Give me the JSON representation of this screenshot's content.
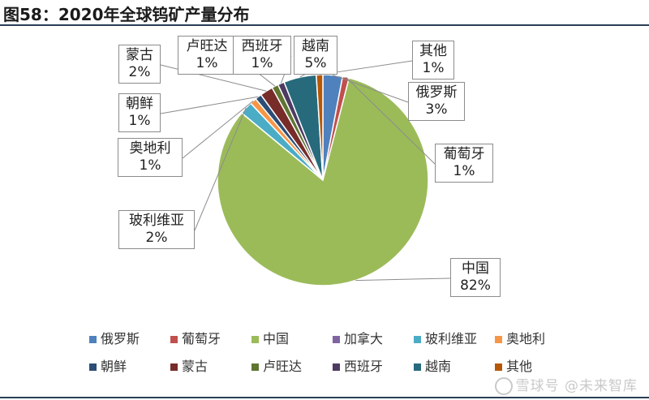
{
  "title": "图58：2020年全球钨矿产量分布",
  "watermark": "雪球号 @未来智库",
  "chart_data": {
    "type": "pie",
    "start_angle_deg": 90,
    "slices": [
      {
        "name": "俄罗斯",
        "value": 3,
        "label": "3%",
        "color": "#4f81bd"
      },
      {
        "name": "葡萄牙",
        "value": 1,
        "label": "1%",
        "color": "#c0504d"
      },
      {
        "name": "中国",
        "value": 82,
        "label": "82%",
        "color": "#9bbb59"
      },
      {
        "name": "加拿大",
        "value": 0,
        "label": "",
        "color": "#8064a2"
      },
      {
        "name": "玻利维亚",
        "value": 2,
        "label": "2%",
        "color": "#4bacc6"
      },
      {
        "name": "奥地利",
        "value": 1,
        "label": "1%",
        "color": "#f79646"
      },
      {
        "name": "朝鲜",
        "value": 1,
        "label": "1%",
        "color": "#2c4d75"
      },
      {
        "name": "蒙古",
        "value": 2,
        "label": "2%",
        "color": "#772c2a"
      },
      {
        "name": "卢旺达",
        "value": 1,
        "label": "1%",
        "color": "#5f7530"
      },
      {
        "name": "西班牙",
        "value": 1,
        "label": "1%",
        "color": "#4d3b62"
      },
      {
        "name": "越南",
        "value": 5,
        "label": "5%",
        "color": "#276a7c"
      },
      {
        "name": "其他",
        "value": 1,
        "label": "1%",
        "color": "#b65708"
      }
    ],
    "legend": [
      "俄罗斯",
      "葡萄牙",
      "中国",
      "加拿大",
      "玻利维亚",
      "奥地利",
      "朝鲜",
      "蒙古",
      "卢旺达",
      "西班牙",
      "越南",
      "其他"
    ],
    "legend_position": "bottom"
  }
}
